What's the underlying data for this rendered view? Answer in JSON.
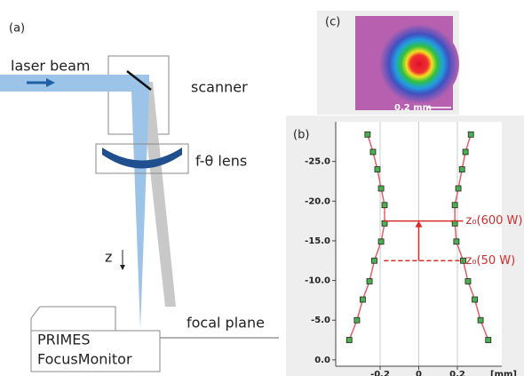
{
  "panels": {
    "a": "(a)",
    "b": "(b)",
    "c": "(c)"
  },
  "diagram": {
    "laser_beam": "laser beam",
    "scanner": "scanner",
    "lens": "f-θ lens",
    "z_axis": "z",
    "focal_plane": "focal plane",
    "device_line1": "PRIMES",
    "device_line2": "FocusMonitor"
  },
  "image": {
    "scale_bar": "0.2 mm"
  },
  "chart_data": {
    "type": "scatter",
    "x_label": "[mm]",
    "xlim": [
      -0.43,
      0.43
    ],
    "xticks": [
      -0.2,
      0,
      0.2
    ],
    "ylim": [
      0.8,
      -30
    ],
    "yticks": [
      {
        "value": 0,
        "label": "0.0"
      },
      {
        "value": -5,
        "label": "-5.0"
      },
      {
        "value": -10,
        "label": "-10.0"
      },
      {
        "value": -15,
        "label": "-15.0"
      },
      {
        "value": -20,
        "label": "-20.0"
      },
      {
        "value": -25,
        "label": "-25.0"
      }
    ],
    "grid": true,
    "line_color": "#e0606a",
    "marker_color": "#4caf50",
    "series": [
      {
        "x": [
          -0.36,
          -0.32,
          -0.29,
          -0.255,
          -0.23,
          -0.195,
          -0.177,
          -0.177,
          -0.195,
          -0.214,
          -0.237,
          -0.265
        ],
        "values": [
          -2.5,
          -5.0,
          -7.6,
          -9.9,
          -12.5,
          -14.9,
          -17.2,
          -19.5,
          -21.6,
          -24.0,
          -26.2,
          -28.4
        ]
      },
      {
        "x": [
          0.36,
          0.32,
          0.29,
          0.255,
          0.23,
          0.195,
          0.187,
          0.187,
          0.205,
          0.224,
          0.242,
          0.27
        ],
        "values": [
          -2.5,
          -5.0,
          -7.6,
          -9.9,
          -12.5,
          -14.9,
          -17.2,
          -19.5,
          -21.6,
          -24.0,
          -26.2,
          -28.4
        ]
      }
    ],
    "annotations": [
      {
        "text": "z₀(600 W)",
        "y": -17.5,
        "color": "#d62b2b",
        "dashed": false
      },
      {
        "text": "z₀(50 W)",
        "y": -12.5,
        "color": "#d62b2b",
        "dashed": true
      }
    ]
  }
}
